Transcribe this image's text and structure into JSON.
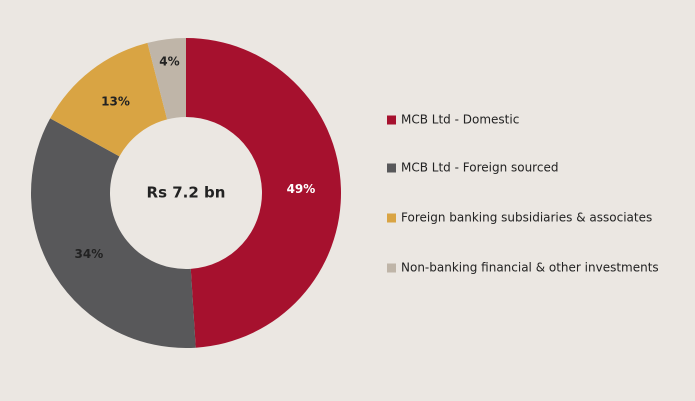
{
  "chart_data": {
    "type": "pie",
    "center_label": "Rs 7.2 bn",
    "categories": [
      "MCB Ltd - Domestic",
      "MCB Ltd - Foreign sourced",
      "Foreign banking subsidiaries & associates",
      "Non-banking financial & other investments"
    ],
    "values": [
      49,
      34,
      13,
      4
    ],
    "value_labels": [
      "49%",
      "34%",
      "13%",
      "4%"
    ],
    "colors": [
      "#a6112e",
      "#58585a",
      "#d9a443",
      "#bfb5a8"
    ],
    "legend": "right"
  }
}
